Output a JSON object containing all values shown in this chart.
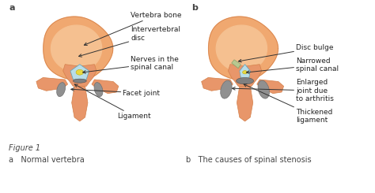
{
  "fig_label": "Figure 1",
  "panel_a_label": "a",
  "panel_b_label": "b",
  "panel_a_caption": "a   Normal vertebra",
  "panel_b_caption": "b   The causes of spinal stenosis",
  "colors": {
    "bone_outer": "#E8966A",
    "bone_inner": "#F0A870",
    "bone_light": "#F5C090",
    "disc_outer": "#D4804A",
    "nerve_blue": "#B8DDE8",
    "nerve_cyan": "#90C8D8",
    "yellow": "#E8D840",
    "facet": "#909090",
    "facet_dark": "#707070",
    "ligament": "#808080",
    "arrow": "#333333",
    "text": "#222222",
    "bg": "#F0EDE8"
  },
  "font_size": 6.5,
  "label_font_size": 8,
  "caption_font_size": 7
}
